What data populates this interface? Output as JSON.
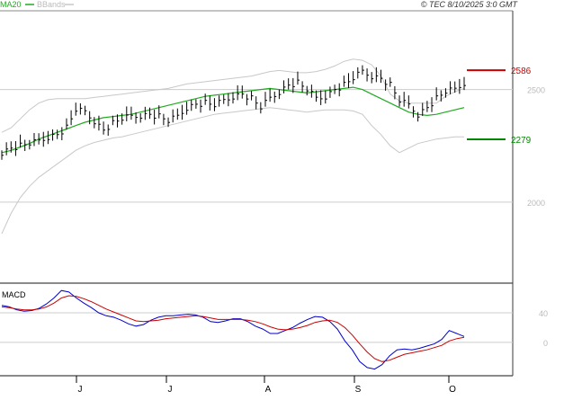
{
  "header": {
    "legend_ma": "MA20",
    "legend_bb": "BBands",
    "copyright": "© TEC 8/10/2025 3:0 GMT"
  },
  "colors": {
    "ma": "#22aa22",
    "bands": "#c8c8c8",
    "price": "#000000",
    "resistance": "#cc0000",
    "support": "#008800",
    "macd": "#0000cc",
    "signal": "#cc0000",
    "grid": "#cccccc"
  },
  "chart_data": [
    {
      "name": "price-panel",
      "type": "ohlc",
      "x_labels": [
        "J",
        "J",
        "A",
        "S",
        "O"
      ],
      "y_ticks": [
        2000,
        2500
      ],
      "y_tick_labels": [
        "2000",
        "2500"
      ],
      "ylim": [
        1640,
        2850
      ],
      "grid": true,
      "levels": [
        {
          "label": "2586",
          "value": 2586,
          "kind": "resistance"
        },
        {
          "label": "2279",
          "value": 2279,
          "kind": "support"
        }
      ],
      "series": [
        {
          "name": "MA20",
          "values": [
            2220,
            2230,
            2245,
            2260,
            2280,
            2295,
            2310,
            2325,
            2340,
            2355,
            2365,
            2375,
            2380,
            2385,
            2390,
            2400,
            2410,
            2420,
            2430,
            2440,
            2450,
            2460,
            2470,
            2475,
            2480,
            2485,
            2490,
            2495,
            2500,
            2505,
            2500,
            2495,
            2490,
            2485,
            2490,
            2495,
            2500,
            2505,
            2510,
            2500,
            2480,
            2460,
            2440,
            2420,
            2400,
            2390,
            2385,
            2390,
            2400,
            2410,
            2420
          ]
        },
        {
          "name": "BBands",
          "upper": [
            2310,
            2330,
            2370,
            2410,
            2440,
            2455,
            2460,
            2460,
            2460,
            2460,
            2465,
            2470,
            2475,
            2480,
            2485,
            2490,
            2495,
            2500,
            2505,
            2515,
            2525,
            2530,
            2535,
            2540,
            2545,
            2550,
            2555,
            2560,
            2570,
            2580,
            2585,
            2580,
            2575,
            2575,
            2580,
            2590,
            2605,
            2625,
            2635,
            2630,
            2610,
            2560,
            2480,
            2450,
            2440,
            2440,
            2440,
            2440,
            2470,
            2490,
            2505
          ],
          "lower": [
            1860,
            1950,
            2020,
            2070,
            2110,
            2140,
            2170,
            2200,
            2230,
            2250,
            2265,
            2275,
            2285,
            2290,
            2300,
            2310,
            2320,
            2330,
            2340,
            2350,
            2360,
            2370,
            2380,
            2390,
            2395,
            2400,
            2405,
            2410,
            2415,
            2420,
            2415,
            2410,
            2405,
            2400,
            2405,
            2410,
            2410,
            2410,
            2405,
            2390,
            2340,
            2300,
            2250,
            2220,
            2240,
            2260,
            2270,
            2280,
            2285,
            2290,
            2290
          ]
        },
        {
          "name": "Price",
          "values": [
            2220,
            2240,
            2250,
            2260,
            2270,
            2290,
            2300,
            2330,
            2410,
            2400,
            2360,
            2320,
            2350,
            2370,
            2380,
            2385,
            2390,
            2380,
            2360,
            2380,
            2420,
            2435,
            2440,
            2430,
            2450,
            2470,
            2480,
            2460,
            2420,
            2460,
            2490,
            2520,
            2530,
            2500,
            2460,
            2470,
            2500,
            2520,
            2550,
            2580,
            2560,
            2550,
            2520,
            2450,
            2430,
            2390,
            2420,
            2460,
            2490,
            2500,
            2530
          ]
        }
      ]
    },
    {
      "name": "macd-panel",
      "type": "line",
      "title": "MACD",
      "y_ticks": [
        40,
        0
      ],
      "y_tick_labels": [
        "40",
        "0"
      ],
      "ylim": [
        -45,
        80
      ],
      "grid": true,
      "series": [
        {
          "name": "MACD",
          "values": [
            50,
            48,
            44,
            42,
            43,
            46,
            52,
            60,
            70,
            68,
            60,
            53,
            47,
            40,
            36,
            34,
            30,
            25,
            22,
            24,
            30,
            34,
            36,
            36,
            37,
            38,
            37,
            34,
            28,
            27,
            29,
            32,
            32,
            28,
            22,
            18,
            12,
            12,
            16,
            20,
            26,
            31,
            35,
            34,
            28,
            18,
            2,
            -10,
            -26,
            -34,
            -36,
            -30,
            -18,
            -10,
            -9,
            -10,
            -8,
            -5,
            -2,
            4,
            16,
            12,
            8
          ]
        },
        {
          "name": "Signal",
          "values": [
            48,
            47,
            45,
            44,
            44,
            45,
            48,
            53,
            60,
            63,
            62,
            59,
            55,
            50,
            45,
            41,
            37,
            33,
            29,
            28,
            29,
            30,
            32,
            33,
            34,
            35,
            36,
            35,
            33,
            31,
            31,
            31,
            31,
            30,
            28,
            25,
            21,
            18,
            17,
            18,
            20,
            23,
            27,
            29,
            30,
            27,
            20,
            10,
            -2,
            -13,
            -22,
            -26,
            -24,
            -20,
            -16,
            -14,
            -12,
            -10,
            -7,
            -4,
            2,
            5,
            7
          ]
        }
      ]
    }
  ]
}
